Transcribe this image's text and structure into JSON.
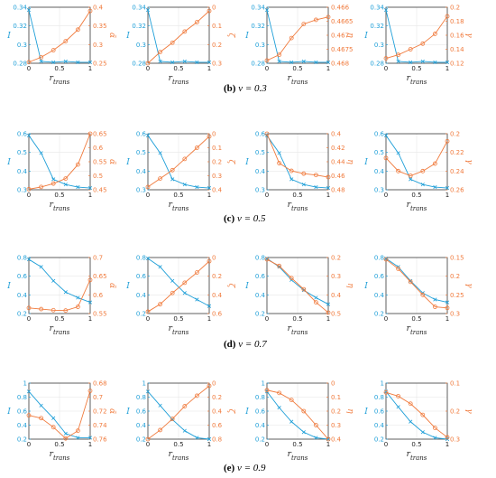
{
  "colors": {
    "blue": "#1f9fd8",
    "orange": "#f07a3c",
    "axis": "#222222",
    "grid": "#e6e6e6"
  },
  "caption_prefixes": [
    "(b)",
    "(c)",
    "(d)",
    "(e)"
  ],
  "caption_texts": [
    "ν = 0.3",
    "ν = 0.5",
    "ν = 0.7",
    "ν = 0.9"
  ],
  "chart_data": [
    {
      "type": "line",
      "panel": "b-1",
      "xlabel": "r_trans",
      "left_ylabel": "I",
      "right_ylabel": "α̃",
      "x": [
        0,
        0.2,
        0.4,
        0.6,
        0.8,
        1
      ],
      "xlim": [
        0,
        1
      ],
      "xticks": [
        "0",
        "0.5",
        "1"
      ],
      "left": {
        "ylim": [
          0.28,
          0.34
        ],
        "ticks": [
          "0.28",
          "0.3",
          "0.32",
          "0.34"
        ],
        "values": [
          0.337,
          0.282,
          0.281,
          0.282,
          0.281,
          0.281
        ]
      },
      "right": {
        "ylim": [
          0.4,
          0.25
        ],
        "ticks": [
          "0.4",
          "0.35",
          "0.3",
          "0.25"
        ],
        "values": [
          0.397,
          0.384,
          0.365,
          0.341,
          0.31,
          0.26
        ]
      }
    },
    {
      "type": "line",
      "panel": "b-2",
      "xlabel": "r_trans",
      "left_ylabel": "I",
      "right_ylabel": "ζ",
      "x": [
        0,
        0.2,
        0.4,
        0.6,
        0.8,
        1
      ],
      "xlim": [
        0,
        1
      ],
      "xticks": [
        "0",
        "0.5",
        "1"
      ],
      "left": {
        "ylim": [
          0.28,
          0.34
        ],
        "ticks": [
          "0.28",
          "0.3",
          "0.32",
          "0.34"
        ],
        "values": [
          0.337,
          0.282,
          0.281,
          0.282,
          0.281,
          0.281
        ]
      },
      "right": {
        "ylim": [
          0,
          0.3
        ],
        "ticks": [
          "0",
          "0.1",
          "0.2",
          "0.3"
        ],
        "values": [
          0.0,
          0.06,
          0.11,
          0.17,
          0.22,
          0.28
        ]
      }
    },
    {
      "type": "line",
      "panel": "b-3",
      "xlabel": "r_trans",
      "left_ylabel": "I",
      "right_ylabel": "η",
      "x": [
        0,
        0.2,
        0.4,
        0.6,
        0.8,
        1
      ],
      "xlim": [
        0,
        1
      ],
      "xticks": [
        "0",
        "0.5",
        "1"
      ],
      "left": {
        "ylim": [
          0.28,
          0.34
        ],
        "ticks": [
          "0.28",
          "0.3",
          "0.32",
          "0.34"
        ],
        "values": [
          0.337,
          0.282,
          0.281,
          0.282,
          0.281,
          0.281
        ]
      },
      "right": {
        "ylim": [
          0.468,
          0.466
        ],
        "ticks": [
          "0.466",
          "0.4665",
          "0.467",
          "0.4675",
          "0.468"
        ],
        "values": [
          0.4679,
          0.4677,
          0.4671,
          0.4666,
          0.46645,
          0.46635
        ]
      }
    },
    {
      "type": "line",
      "panel": "b-4",
      "xlabel": "r_trans",
      "left_ylabel": "I",
      "right_ylabel": "γ",
      "x": [
        0,
        0.2,
        0.4,
        0.6,
        0.8,
        1
      ],
      "xlim": [
        0,
        1
      ],
      "xticks": [
        "0",
        "0.5",
        "1"
      ],
      "left": {
        "ylim": [
          0.28,
          0.34
        ],
        "ticks": [
          "0.28",
          "0.3",
          "0.32",
          "0.34"
        ],
        "values": [
          0.337,
          0.282,
          0.281,
          0.282,
          0.281,
          0.281
        ]
      },
      "right": {
        "ylim": [
          0.2,
          0.12
        ],
        "ticks": [
          "0.2",
          "0.18",
          "0.16",
          "0.14",
          "0.12"
        ],
        "values": [
          0.193,
          0.188,
          0.18,
          0.172,
          0.158,
          0.133
        ]
      }
    },
    {
      "type": "line",
      "panel": "c-1",
      "xlabel": "r_trans",
      "left_ylabel": "I",
      "right_ylabel": "α̃",
      "x": [
        0,
        0.2,
        0.4,
        0.6,
        0.8,
        1
      ],
      "xlim": [
        0,
        1
      ],
      "xticks": [
        "0",
        "0.5",
        "1"
      ],
      "left": {
        "ylim": [
          0.28,
          0.6
        ],
        "ticks": [
          "0.3",
          "0.4",
          "0.5",
          "0.6"
        ],
        "values": [
          0.59,
          0.49,
          0.34,
          0.31,
          0.295,
          0.29
        ]
      },
      "right": {
        "ylim": [
          0.65,
          0.45
        ],
        "ticks": [
          "0.65",
          "0.6",
          "0.55",
          "0.5",
          "0.45"
        ],
        "values": [
          0.648,
          0.64,
          0.628,
          0.61,
          0.56,
          0.45
        ]
      }
    },
    {
      "type": "line",
      "panel": "c-2",
      "xlabel": "r_trans",
      "left_ylabel": "I",
      "right_ylabel": "ζ",
      "x": [
        0,
        0.2,
        0.4,
        0.6,
        0.8,
        1
      ],
      "xlim": [
        0,
        1
      ],
      "xticks": [
        "0",
        "0.5",
        "1"
      ],
      "left": {
        "ylim": [
          0.28,
          0.6
        ],
        "ticks": [
          "0.3",
          "0.4",
          "0.5",
          "0.6"
        ],
        "values": [
          0.59,
          0.49,
          0.34,
          0.31,
          0.295,
          0.29
        ]
      },
      "right": {
        "ylim": [
          0,
          0.4
        ],
        "ticks": [
          "0",
          "0.1",
          "0.2",
          "0.3",
          "0.4"
        ],
        "values": [
          0.02,
          0.08,
          0.14,
          0.22,
          0.3,
          0.38
        ]
      }
    },
    {
      "type": "line",
      "panel": "c-3",
      "xlabel": "r_trans",
      "left_ylabel": "I",
      "right_ylabel": "η",
      "x": [
        0,
        0.2,
        0.4,
        0.6,
        0.8,
        1
      ],
      "xlim": [
        0,
        1
      ],
      "xticks": [
        "0",
        "0.5",
        "1"
      ],
      "left": {
        "ylim": [
          0.28,
          0.6
        ],
        "ticks": [
          "0.3",
          "0.4",
          "0.5",
          "0.6"
        ],
        "values": [
          0.59,
          0.49,
          0.34,
          0.31,
          0.295,
          0.29
        ]
      },
      "right": {
        "ylim": [
          0.48,
          0.4
        ],
        "ticks": [
          "0.4",
          "0.42",
          "0.44",
          "0.46",
          "0.48"
        ],
        "values": [
          0.4,
          0.442,
          0.453,
          0.457,
          0.459,
          0.462
        ]
      }
    },
    {
      "type": "line",
      "panel": "c-4",
      "xlabel": "r_trans",
      "left_ylabel": "I",
      "right_ylabel": "γ",
      "x": [
        0,
        0.2,
        0.4,
        0.6,
        0.8,
        1
      ],
      "xlim": [
        0,
        1
      ],
      "xticks": [
        "0",
        "0.5",
        "1"
      ],
      "left": {
        "ylim": [
          0.28,
          0.6
        ],
        "ticks": [
          "0.3",
          "0.4",
          "0.5",
          "0.6"
        ],
        "values": [
          0.59,
          0.49,
          0.34,
          0.31,
          0.295,
          0.29
        ]
      },
      "right": {
        "ylim": [
          0.26,
          0.2
        ],
        "ticks": [
          "0.2",
          "0.22",
          "0.24",
          "0.26"
        ],
        "values": [
          0.226,
          0.24,
          0.245,
          0.24,
          0.232,
          0.208
        ]
      }
    },
    {
      "type": "line",
      "panel": "d-1",
      "xlabel": "r_trans",
      "left_ylabel": "I",
      "right_ylabel": "α̃",
      "x": [
        0,
        0.2,
        0.4,
        0.6,
        0.8,
        1
      ],
      "xlim": [
        0,
        1
      ],
      "xticks": [
        "0",
        "0.5",
        "1"
      ],
      "left": {
        "ylim": [
          0.2,
          0.8
        ],
        "ticks": [
          "0.2",
          "0.4",
          "0.6",
          "0.8"
        ],
        "values": [
          0.78,
          0.7,
          0.55,
          0.43,
          0.37,
          0.32
        ]
      },
      "right": {
        "ylim": [
          0.7,
          0.55
        ],
        "ticks": [
          "0.7",
          "0.65",
          "0.6",
          "0.55"
        ],
        "values": [
          0.685,
          0.688,
          0.691,
          0.692,
          0.682,
          0.61
        ]
      }
    },
    {
      "type": "line",
      "panel": "d-2",
      "xlabel": "r_trans",
      "left_ylabel": "I",
      "right_ylabel": "ζ",
      "x": [
        0,
        0.2,
        0.4,
        0.6,
        0.8,
        1
      ],
      "xlim": [
        0,
        1
      ],
      "xticks": [
        "0",
        "0.5",
        "1"
      ],
      "left": {
        "ylim": [
          0.2,
          0.8
        ],
        "ticks": [
          "0.2",
          "0.4",
          "0.6",
          "0.8"
        ],
        "values": [
          0.79,
          0.7,
          0.55,
          0.42,
          0.35,
          0.28
        ]
      },
      "right": {
        "ylim": [
          0,
          0.6
        ],
        "ticks": [
          "0",
          "0.2",
          "0.4",
          "0.6"
        ],
        "values": [
          0.02,
          0.1,
          0.22,
          0.33,
          0.44,
          0.56
        ]
      }
    },
    {
      "type": "line",
      "panel": "d-3",
      "xlabel": "r_trans",
      "left_ylabel": "I",
      "right_ylabel": "η",
      "x": [
        0,
        0.2,
        0.4,
        0.6,
        0.8,
        1
      ],
      "xlim": [
        0,
        1
      ],
      "xticks": [
        "0",
        "0.5",
        "1"
      ],
      "left": {
        "ylim": [
          0.2,
          0.8
        ],
        "ticks": [
          "0.2",
          "0.4",
          "0.6",
          "0.8"
        ],
        "values": [
          0.79,
          0.7,
          0.56,
          0.45,
          0.37,
          0.3
        ]
      },
      "right": {
        "ylim": [
          0.5,
          0.2
        ],
        "ticks": [
          "0.2",
          "0.3",
          "0.4",
          "0.5"
        ],
        "values": [
          0.21,
          0.245,
          0.31,
          0.37,
          0.44,
          0.495
        ]
      }
    },
    {
      "type": "line",
      "panel": "d-4",
      "xlabel": "r_trans",
      "left_ylabel": "I",
      "right_ylabel": "γ",
      "x": [
        0,
        0.2,
        0.4,
        0.6,
        0.8,
        1
      ],
      "xlim": [
        0,
        1
      ],
      "xticks": [
        "0",
        "0.5",
        "1"
      ],
      "left": {
        "ylim": [
          0.2,
          0.8
        ],
        "ticks": [
          "0.2",
          "0.4",
          "0.6",
          "0.8"
        ],
        "values": [
          0.79,
          0.7,
          0.55,
          0.42,
          0.35,
          0.32
        ]
      },
      "right": {
        "ylim": [
          0.3,
          0.15
        ],
        "ticks": [
          "0.15",
          "0.2",
          "0.25",
          "0.3"
        ],
        "values": [
          0.155,
          0.18,
          0.215,
          0.25,
          0.282,
          0.285
        ]
      }
    },
    {
      "type": "line",
      "panel": "e-1",
      "xlabel": "r_trans",
      "left_ylabel": "I",
      "right_ylabel": "α̃",
      "x": [
        0,
        0.2,
        0.4,
        0.6,
        0.8,
        1
      ],
      "xlim": [
        0,
        1
      ],
      "xticks": [
        "0",
        "0.5",
        "1"
      ],
      "left": {
        "ylim": [
          0.2,
          1
        ],
        "ticks": [
          "0.2",
          "0.4",
          "0.6",
          "0.8",
          "1"
        ],
        "values": [
          0.88,
          0.68,
          0.5,
          0.28,
          0.22,
          0.22
        ]
      },
      "right": {
        "ylim": [
          0.76,
          0.68
        ],
        "ticks": [
          "0.68",
          "0.7",
          "0.72",
          "0.74",
          "0.76"
        ],
        "values": [
          0.726,
          0.73,
          0.743,
          0.759,
          0.748,
          0.691
        ]
      }
    },
    {
      "type": "line",
      "panel": "e-2",
      "xlabel": "r_trans",
      "left_ylabel": "I",
      "right_ylabel": "ζ",
      "x": [
        0,
        0.2,
        0.4,
        0.6,
        0.8,
        1
      ],
      "xlim": [
        0,
        1
      ],
      "xticks": [
        "0",
        "0.5",
        "1"
      ],
      "left": {
        "ylim": [
          0.2,
          1
        ],
        "ticks": [
          "0.2",
          "0.4",
          "0.6",
          "0.8",
          "1"
        ],
        "values": [
          0.88,
          0.68,
          0.48,
          0.32,
          0.22,
          0.2
        ]
      },
      "right": {
        "ylim": [
          0,
          0.8
        ],
        "ticks": [
          "0",
          "0.2",
          "0.4",
          "0.6",
          "0.8"
        ],
        "values": [
          0.0,
          0.13,
          0.29,
          0.47,
          0.62,
          0.76
        ]
      }
    },
    {
      "type": "line",
      "panel": "e-3",
      "xlabel": "r_trans",
      "left_ylabel": "I",
      "right_ylabel": "η",
      "x": [
        0,
        0.2,
        0.4,
        0.6,
        0.8,
        1
      ],
      "xlim": [
        0,
        1
      ],
      "xticks": [
        "0",
        "0.5",
        "1"
      ],
      "left": {
        "ylim": [
          0.2,
          1
        ],
        "ticks": [
          "0.2",
          "0.4",
          "0.6",
          "0.8",
          "1"
        ],
        "values": [
          0.88,
          0.65,
          0.45,
          0.3,
          0.22,
          0.2
        ]
      },
      "right": {
        "ylim": [
          0.4,
          0
        ],
        "ticks": [
          "0",
          "0.1",
          "0.2",
          "0.3",
          "0.4"
        ],
        "values": [
          0.05,
          0.07,
          0.12,
          0.2,
          0.3,
          0.4
        ]
      }
    },
    {
      "type": "line",
      "panel": "e-4",
      "xlabel": "r_trans",
      "left_ylabel": "I",
      "right_ylabel": "γ",
      "x": [
        0,
        0.2,
        0.4,
        0.6,
        0.8,
        1
      ],
      "xlim": [
        0,
        1
      ],
      "xticks": [
        "0",
        "0.5",
        "1"
      ],
      "left": {
        "ylim": [
          0.2,
          1
        ],
        "ticks": [
          "0.2",
          "0.4",
          "0.6",
          "0.8",
          "1"
        ],
        "values": [
          0.88,
          0.66,
          0.45,
          0.3,
          0.22,
          0.2
        ]
      },
      "right": {
        "ylim": [
          0.3,
          0
        ],
        "ticks": [
          "0.1",
          "0.2",
          "0.3"
        ],
        "values": [
          0.05,
          0.07,
          0.11,
          0.17,
          0.24,
          0.29
        ]
      }
    }
  ]
}
